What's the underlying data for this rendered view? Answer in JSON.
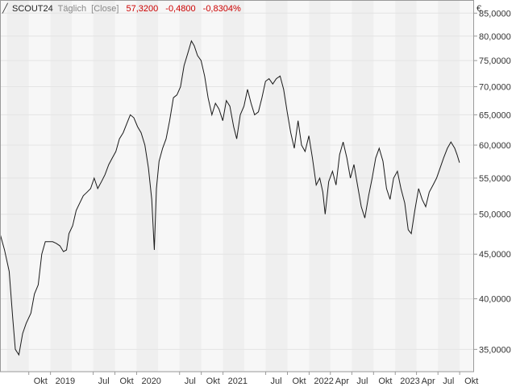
{
  "header": {
    "symbol": "SCOUT24",
    "period": "Täglich",
    "mode": "[Close]",
    "last": "57,3200",
    "change": "-0,4800",
    "change_pct": "-0,8304%"
  },
  "chart_data": {
    "type": "line",
    "title": "SCOUT24",
    "y_unit": "€",
    "y_scale": "log",
    "ylim": [
      33,
      88
    ],
    "grid": true,
    "series": [
      {
        "name": "SCOUT24",
        "points": [
          [
            "2018-06-01",
            47.5
          ],
          [
            "2018-06-20",
            45.5
          ],
          [
            "2018-07-10",
            43.0
          ],
          [
            "2018-07-25",
            38.0
          ],
          [
            "2018-08-05",
            35.0
          ],
          [
            "2018-08-20",
            34.5
          ],
          [
            "2018-09-05",
            36.5
          ],
          [
            "2018-09-20",
            37.5
          ],
          [
            "2018-10-10",
            38.5
          ],
          [
            "2018-10-25",
            40.5
          ],
          [
            "2018-11-10",
            41.5
          ],
          [
            "2018-11-25",
            45.0
          ],
          [
            "2018-12-10",
            46.5
          ],
          [
            "2019-01-10",
            46.5
          ],
          [
            "2019-01-25",
            46.3
          ],
          [
            "2019-02-10",
            46.0
          ],
          [
            "2019-02-25",
            45.3
          ],
          [
            "2019-03-10",
            45.5
          ],
          [
            "2019-03-20",
            47.5
          ],
          [
            "2019-04-05",
            48.5
          ],
          [
            "2019-04-20",
            50.5
          ],
          [
            "2019-05-05",
            51.5
          ],
          [
            "2019-05-20",
            52.5
          ],
          [
            "2019-06-05",
            53.0
          ],
          [
            "2019-06-20",
            53.5
          ],
          [
            "2019-07-05",
            55.0
          ],
          [
            "2019-07-20",
            53.5
          ],
          [
            "2019-08-05",
            54.5
          ],
          [
            "2019-08-20",
            55.5
          ],
          [
            "2019-09-05",
            57.0
          ],
          [
            "2019-09-20",
            58.0
          ],
          [
            "2019-10-05",
            59.0
          ],
          [
            "2019-10-20",
            61.0
          ],
          [
            "2019-11-05",
            62.0
          ],
          [
            "2019-11-20",
            63.5
          ],
          [
            "2019-12-05",
            65.0
          ],
          [
            "2019-12-20",
            64.5
          ],
          [
            "2020-01-05",
            63.0
          ],
          [
            "2020-01-20",
            62.0
          ],
          [
            "2020-02-05",
            60.0
          ],
          [
            "2020-02-20",
            56.5
          ],
          [
            "2020-03-05",
            52.0
          ],
          [
            "2020-03-16",
            45.5
          ],
          [
            "2020-03-25",
            53.5
          ],
          [
            "2020-04-05",
            57.5
          ],
          [
            "2020-04-20",
            59.5
          ],
          [
            "2020-05-05",
            61.0
          ],
          [
            "2020-05-20",
            64.0
          ],
          [
            "2020-06-05",
            68.0
          ],
          [
            "2020-06-20",
            68.5
          ],
          [
            "2020-07-05",
            70.0
          ],
          [
            "2020-07-20",
            74.0
          ],
          [
            "2020-08-05",
            76.5
          ],
          [
            "2020-08-20",
            79.0
          ],
          [
            "2020-09-01",
            78.0
          ],
          [
            "2020-09-15",
            76.0
          ],
          [
            "2020-09-30",
            75.0
          ],
          [
            "2020-10-15",
            72.0
          ],
          [
            "2020-10-30",
            68.0
          ],
          [
            "2020-11-15",
            65.0
          ],
          [
            "2020-11-30",
            67.0
          ],
          [
            "2020-12-15",
            66.0
          ],
          [
            "2020-12-31",
            64.0
          ],
          [
            "2021-01-15",
            67.5
          ],
          [
            "2021-01-30",
            66.5
          ],
          [
            "2021-02-15",
            63.0
          ],
          [
            "2021-02-28",
            61.0
          ],
          [
            "2021-03-15",
            65.0
          ],
          [
            "2021-03-31",
            66.5
          ],
          [
            "2021-04-15",
            69.5
          ],
          [
            "2021-04-30",
            67.0
          ],
          [
            "2021-05-15",
            65.0
          ],
          [
            "2021-05-31",
            65.5
          ],
          [
            "2021-06-15",
            68.0
          ],
          [
            "2021-06-30",
            71.0
          ],
          [
            "2021-07-15",
            71.5
          ],
          [
            "2021-07-31",
            70.5
          ],
          [
            "2021-08-15",
            71.5
          ],
          [
            "2021-08-31",
            72.0
          ],
          [
            "2021-09-15",
            69.5
          ],
          [
            "2021-09-30",
            65.5
          ],
          [
            "2021-10-15",
            62.0
          ],
          [
            "2021-10-30",
            59.5
          ],
          [
            "2021-11-15",
            64.0
          ],
          [
            "2021-11-30",
            60.0
          ],
          [
            "2021-12-15",
            59.0
          ],
          [
            "2021-12-31",
            61.5
          ],
          [
            "2022-01-15",
            58.0
          ],
          [
            "2022-01-31",
            54.0
          ],
          [
            "2022-02-15",
            55.0
          ],
          [
            "2022-02-28",
            53.0
          ],
          [
            "2022-03-10",
            50.0
          ],
          [
            "2022-03-25",
            54.5
          ],
          [
            "2022-04-10",
            56.0
          ],
          [
            "2022-04-25",
            54.0
          ],
          [
            "2022-05-10",
            58.5
          ],
          [
            "2022-05-25",
            60.5
          ],
          [
            "2022-06-10",
            58.0
          ],
          [
            "2022-06-25",
            55.0
          ],
          [
            "2022-07-10",
            57.0
          ],
          [
            "2022-07-25",
            54.0
          ],
          [
            "2022-08-10",
            51.0
          ],
          [
            "2022-08-25",
            49.5
          ],
          [
            "2022-09-10",
            52.5
          ],
          [
            "2022-09-25",
            55.0
          ],
          [
            "2022-10-10",
            58.0
          ],
          [
            "2022-10-25",
            59.5
          ],
          [
            "2022-11-10",
            57.5
          ],
          [
            "2022-11-25",
            53.5
          ],
          [
            "2022-12-10",
            52.0
          ],
          [
            "2022-12-25",
            55.0
          ],
          [
            "2023-01-10",
            56.0
          ],
          [
            "2023-01-25",
            53.5
          ],
          [
            "2023-02-10",
            51.5
          ],
          [
            "2023-02-25",
            48.0
          ],
          [
            "2023-03-10",
            47.5
          ],
          [
            "2023-03-25",
            50.5
          ],
          [
            "2023-04-10",
            53.5
          ],
          [
            "2023-04-25",
            52.0
          ],
          [
            "2023-05-10",
            51.0
          ],
          [
            "2023-05-25",
            53.0
          ],
          [
            "2023-06-10",
            54.0
          ],
          [
            "2023-06-25",
            55.0
          ],
          [
            "2023-07-10",
            56.5
          ],
          [
            "2023-07-25",
            58.0
          ],
          [
            "2023-08-10",
            59.5
          ],
          [
            "2023-08-25",
            60.5
          ],
          [
            "2023-09-10",
            59.5
          ],
          [
            "2023-09-20",
            58.5
          ],
          [
            "2023-09-30",
            57.3
          ]
        ]
      }
    ],
    "y_ticks": [
      {
        "value": 35,
        "label": "35,0000"
      },
      {
        "value": 40,
        "label": "40,0000"
      },
      {
        "value": 45,
        "label": "45,0000"
      },
      {
        "value": 50,
        "label": "50,0000"
      },
      {
        "value": 55,
        "label": "55,0000"
      },
      {
        "value": 60,
        "label": "60,0000"
      },
      {
        "value": 65,
        "label": "65,0000"
      },
      {
        "value": 70,
        "label": "70,0000"
      },
      {
        "value": 75,
        "label": "75,0000"
      },
      {
        "value": 80,
        "label": "80,0000"
      },
      {
        "value": 85,
        "label": "85,0000"
      }
    ],
    "x_ticks": [
      {
        "date": "2018-10-01",
        "label": "Okt"
      },
      {
        "date": "2019-01-01",
        "label": "2019"
      },
      {
        "date": "2019-07-01",
        "label": "Jul"
      },
      {
        "date": "2019-10-01",
        "label": "Okt"
      },
      {
        "date": "2020-01-01",
        "label": "2020"
      },
      {
        "date": "2020-07-01",
        "label": "Jul"
      },
      {
        "date": "2020-10-01",
        "label": "Okt"
      },
      {
        "date": "2021-01-01",
        "label": "2021"
      },
      {
        "date": "2021-07-01",
        "label": "Jul"
      },
      {
        "date": "2021-10-01",
        "label": "Okt"
      },
      {
        "date": "2022-01-01",
        "label": "2022"
      },
      {
        "date": "2022-04-01",
        "label": "Apr"
      },
      {
        "date": "2022-07-01",
        "label": "Jul"
      },
      {
        "date": "2022-10-01",
        "label": "Okt"
      },
      {
        "date": "2023-01-01",
        "label": "2023"
      },
      {
        "date": "2023-04-01",
        "label": "Apr"
      },
      {
        "date": "2023-07-01",
        "label": "Jul"
      },
      {
        "date": "2023-10-01",
        "label": "Okt"
      }
    ],
    "shaded_periods": [
      [
        "2018-07-01",
        "2018-10-01"
      ],
      [
        "2019-01-01",
        "2019-04-01"
      ],
      [
        "2019-07-01",
        "2019-10-01"
      ],
      [
        "2020-01-01",
        "2020-04-01"
      ],
      [
        "2020-07-01",
        "2020-10-01"
      ],
      [
        "2021-01-01",
        "2021-04-01"
      ],
      [
        "2021-07-01",
        "2021-10-01"
      ],
      [
        "2022-01-01",
        "2022-04-01"
      ],
      [
        "2022-07-01",
        "2022-10-01"
      ],
      [
        "2023-01-01",
        "2023-04-01"
      ],
      [
        "2023-07-01",
        "2023-10-01"
      ]
    ],
    "colors": {
      "line": "#1a1a1a",
      "change": "#cc0000",
      "grid": "#e4e4e4",
      "shade": "#efefef",
      "background": "#f7f7f7",
      "frame": "#9a9a9a"
    }
  }
}
